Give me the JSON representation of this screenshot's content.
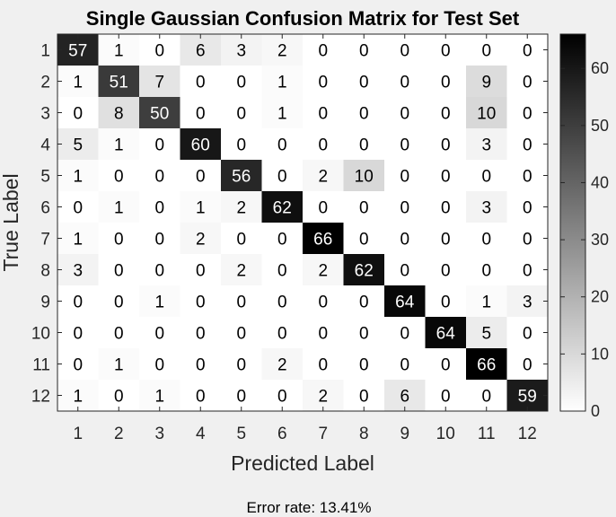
{
  "chart_data": {
    "type": "heatmap",
    "title": "Single Gaussian Confusion Matrix for Test Set",
    "xlabel": "Predicted Label",
    "ylabel": "True Label",
    "x_tick_labels": [
      "1",
      "2",
      "3",
      "4",
      "5",
      "6",
      "7",
      "8",
      "9",
      "10",
      "11",
      "12"
    ],
    "y_tick_labels": [
      "1",
      "2",
      "3",
      "4",
      "5",
      "6",
      "7",
      "8",
      "9",
      "10",
      "11",
      "12"
    ],
    "matrix": [
      [
        57,
        1,
        0,
        6,
        3,
        2,
        0,
        0,
        0,
        0,
        0,
        0
      ],
      [
        1,
        51,
        7,
        0,
        0,
        1,
        0,
        0,
        0,
        0,
        9,
        0
      ],
      [
        0,
        8,
        50,
        0,
        0,
        1,
        0,
        0,
        0,
        0,
        10,
        0
      ],
      [
        5,
        1,
        0,
        60,
        0,
        0,
        0,
        0,
        0,
        0,
        3,
        0
      ],
      [
        1,
        0,
        0,
        0,
        56,
        0,
        2,
        10,
        0,
        0,
        0,
        0
      ],
      [
        0,
        1,
        0,
        1,
        2,
        62,
        0,
        0,
        0,
        0,
        3,
        0
      ],
      [
        1,
        0,
        0,
        2,
        0,
        0,
        66,
        0,
        0,
        0,
        0,
        0
      ],
      [
        3,
        0,
        0,
        0,
        2,
        0,
        2,
        62,
        0,
        0,
        0,
        0
      ],
      [
        0,
        0,
        1,
        0,
        0,
        0,
        0,
        0,
        64,
        0,
        1,
        3
      ],
      [
        0,
        0,
        0,
        0,
        0,
        0,
        0,
        0,
        0,
        64,
        5,
        0
      ],
      [
        0,
        1,
        0,
        0,
        0,
        2,
        0,
        0,
        0,
        0,
        66,
        0
      ],
      [
        1,
        0,
        1,
        0,
        0,
        0,
        2,
        0,
        6,
        0,
        0,
        59
      ]
    ],
    "colormap": "white-to-black",
    "color_range": [
      0,
      66
    ],
    "colorbar_ticks": [
      "0",
      "10",
      "20",
      "30",
      "40",
      "50",
      "60"
    ],
    "grid": false
  },
  "footer": {
    "error_rate": "Error rate: 13.41%"
  },
  "colors": {
    "background": "#f0f0f0",
    "axis": "#262626",
    "cell_high": "#000000",
    "cell_low": "#ffffff"
  }
}
